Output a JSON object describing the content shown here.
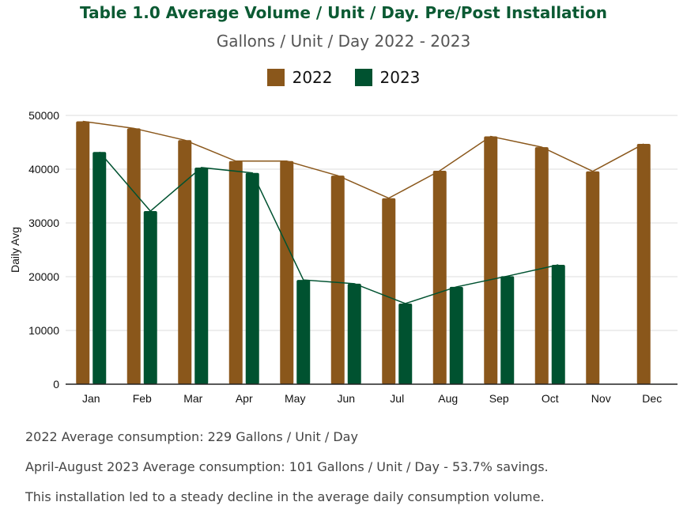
{
  "header": {
    "title": "Table 1.0 Average Volume / Unit / Day. Pre/Post Installation",
    "subtitle": "Gallons / Unit / Day 2022 - 2023"
  },
  "colors": {
    "y2022": "#8a571b",
    "y2023": "#005230",
    "grid": "#dddddd",
    "axis": "#222222"
  },
  "chart_data": {
    "type": "bar",
    "title": "Table 1.0 Average Volume / Unit / Day. Pre/Post Installation",
    "subtitle": "Gallons / Unit / Day 2022 - 2023",
    "xlabel": "",
    "ylabel": "Daily Avg",
    "ylim": [
      0,
      50000
    ],
    "yticks": [
      0,
      10000,
      20000,
      30000,
      40000,
      50000
    ],
    "grid": true,
    "legend_position": "top",
    "categories": [
      "Jan",
      "Feb",
      "Mar",
      "Apr",
      "May",
      "Jun",
      "Jul",
      "Aug",
      "Sep",
      "Oct",
      "Nov",
      "Dec"
    ],
    "series": [
      {
        "name": "2022",
        "values": [
          48900,
          47600,
          45400,
          41500,
          41500,
          38800,
          34600,
          39700,
          46100,
          44100,
          39600,
          44700
        ]
      },
      {
        "name": "2023",
        "values": [
          43200,
          32200,
          40300,
          39300,
          19400,
          18700,
          15000,
          18100,
          20100,
          22200,
          null,
          null
        ]
      }
    ],
    "trendlines": "line overlay connecting each series' values"
  },
  "notes": [
    "2022 Average consumption: 229 Gallons / Unit / Day",
    "April-August 2023 Average consumption: 101 Gallons / Unit / Day - 53.7% savings.",
    "This installation led to a steady decline in the average daily consumption volume."
  ]
}
